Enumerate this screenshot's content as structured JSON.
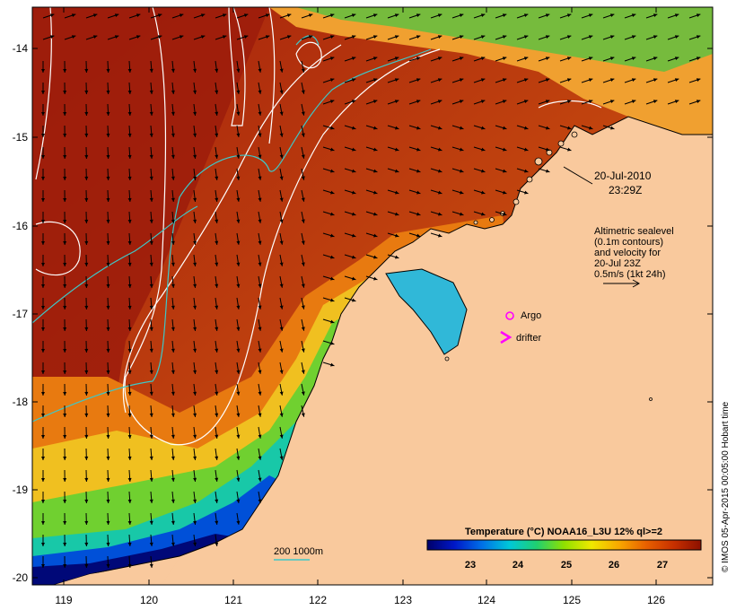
{
  "map": {
    "lon_ticks": [
      "119",
      "120",
      "121",
      "122",
      "123",
      "124",
      "125",
      "126"
    ],
    "lat_ticks": [
      "-14",
      "-15",
      "-16",
      "-17",
      "-18",
      "-19",
      "-20"
    ]
  },
  "annotations": {
    "date": "20-Jul-2010",
    "time": "23:29Z",
    "sealevel_lines": [
      "Altimetric sealevel",
      "(0.1m contours)",
      "and velocity for",
      "20-Jul 23Z",
      "0.5m/s (1kt 24h)"
    ],
    "argo_label": "Argo",
    "drifter_label": "drifter",
    "depth_legend": "200  1000m"
  },
  "colorbar": {
    "title": "Temperature (°C) NOAA16_L3U 12% ql>=2",
    "ticks": [
      "23",
      "24",
      "25",
      "26",
      "27"
    ],
    "colors": [
      "#00006a",
      "#0018c8",
      "#0070e8",
      "#00c8d8",
      "#20d070",
      "#90e000",
      "#f0e800",
      "#f8a800",
      "#e86000",
      "#c83000",
      "#8c1000"
    ]
  },
  "credit": "© IMOS 05-Apr-2015 00:05:00 Hobart time",
  "colors": {
    "land": "#f9c99d",
    "coast": "#000000",
    "contour": "#ffffff",
    "isobath": "#3ec8c8",
    "marker": "#ff00ff"
  }
}
